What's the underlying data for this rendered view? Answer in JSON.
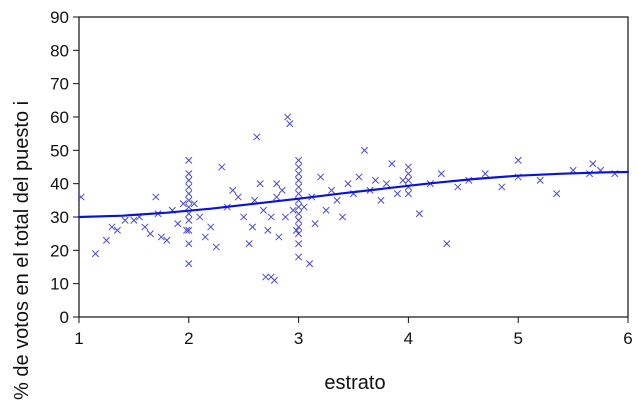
{
  "chart_data": {
    "type": "scatter",
    "title": "",
    "xlabel": "estrato",
    "ylabel": "% de votos en el total del puesto i",
    "xlim": [
      1,
      6
    ],
    "ylim": [
      0,
      90
    ],
    "x_ticks": [
      1,
      2,
      3,
      4,
      5,
      6
    ],
    "y_ticks": [
      0,
      10,
      20,
      30,
      40,
      50,
      60,
      70,
      80,
      90
    ],
    "grid": false,
    "legend": "none",
    "colors": {
      "points": "#4a4ad9",
      "fit_line": "#0a14d6",
      "axis": "#111111"
    },
    "series": [
      {
        "kind": "scatter",
        "marker": "x",
        "points": [
          [
            1.02,
            36
          ],
          [
            1.15,
            19
          ],
          [
            1.25,
            23
          ],
          [
            1.3,
            27
          ],
          [
            1.35,
            26
          ],
          [
            1.42,
            29
          ],
          [
            1.5,
            29
          ],
          [
            1.55,
            30
          ],
          [
            1.6,
            27
          ],
          [
            1.65,
            25
          ],
          [
            1.7,
            36
          ],
          [
            1.72,
            31
          ],
          [
            1.75,
            24
          ],
          [
            1.8,
            23
          ],
          [
            1.85,
            32
          ],
          [
            1.9,
            28
          ],
          [
            1.95,
            34
          ],
          [
            1.98,
            26
          ],
          [
            2.0,
            22
          ],
          [
            2.0,
            16
          ],
          [
            2.0,
            26
          ],
          [
            2.0,
            29
          ],
          [
            2.0,
            31
          ],
          [
            2.0,
            33
          ],
          [
            2.0,
            35
          ],
          [
            2.0,
            37
          ],
          [
            2.0,
            39
          ],
          [
            2.0,
            41
          ],
          [
            2.0,
            43
          ],
          [
            2.0,
            47
          ],
          [
            2.05,
            34
          ],
          [
            2.1,
            30
          ],
          [
            2.15,
            24
          ],
          [
            2.2,
            27
          ],
          [
            2.25,
            21
          ],
          [
            2.3,
            45
          ],
          [
            2.35,
            33
          ],
          [
            2.4,
            38
          ],
          [
            2.45,
            36
          ],
          [
            2.5,
            30
          ],
          [
            2.55,
            22
          ],
          [
            2.58,
            27
          ],
          [
            2.6,
            35
          ],
          [
            2.62,
            54
          ],
          [
            2.65,
            40
          ],
          [
            2.68,
            32
          ],
          [
            2.7,
            12
          ],
          [
            2.72,
            26
          ],
          [
            2.75,
            30
          ],
          [
            2.75,
            12
          ],
          [
            2.78,
            11
          ],
          [
            2.8,
            40
          ],
          [
            2.8,
            36
          ],
          [
            2.82,
            24
          ],
          [
            2.85,
            38
          ],
          [
            2.88,
            30
          ],
          [
            2.9,
            60
          ],
          [
            2.92,
            58
          ],
          [
            2.95,
            32
          ],
          [
            2.98,
            26
          ],
          [
            3.0,
            18
          ],
          [
            3.0,
            22
          ],
          [
            3.0,
            25
          ],
          [
            3.0,
            27
          ],
          [
            3.0,
            29
          ],
          [
            3.0,
            31
          ],
          [
            3.0,
            33
          ],
          [
            3.0,
            35
          ],
          [
            3.0,
            37
          ],
          [
            3.0,
            39
          ],
          [
            3.0,
            41
          ],
          [
            3.0,
            43
          ],
          [
            3.0,
            45
          ],
          [
            3.0,
            47
          ],
          [
            3.05,
            33
          ],
          [
            3.1,
            16
          ],
          [
            3.12,
            36
          ],
          [
            3.15,
            28
          ],
          [
            3.2,
            42
          ],
          [
            3.25,
            32
          ],
          [
            3.3,
            38
          ],
          [
            3.35,
            35
          ],
          [
            3.4,
            30
          ],
          [
            3.45,
            40
          ],
          [
            3.5,
            37
          ],
          [
            3.55,
            42
          ],
          [
            3.6,
            50
          ],
          [
            3.65,
            38
          ],
          [
            3.7,
            41
          ],
          [
            3.75,
            35
          ],
          [
            3.8,
            40
          ],
          [
            3.85,
            46
          ],
          [
            3.9,
            37
          ],
          [
            3.95,
            41
          ],
          [
            4.0,
            37
          ],
          [
            4.0,
            39
          ],
          [
            4.0,
            41
          ],
          [
            4.0,
            43
          ],
          [
            4.0,
            45
          ],
          [
            4.1,
            31
          ],
          [
            4.2,
            40
          ],
          [
            4.3,
            43
          ],
          [
            4.35,
            22
          ],
          [
            4.45,
            39
          ],
          [
            4.55,
            41
          ],
          [
            4.7,
            43
          ],
          [
            4.85,
            39
          ],
          [
            5.0,
            42
          ],
          [
            5.0,
            47
          ],
          [
            5.2,
            41
          ],
          [
            5.35,
            37
          ],
          [
            5.5,
            44
          ],
          [
            5.65,
            43
          ],
          [
            5.68,
            46
          ],
          [
            5.75,
            44
          ],
          [
            5.88,
            43
          ]
        ]
      },
      {
        "kind": "line",
        "points": [
          [
            1.0,
            30.0
          ],
          [
            1.4,
            30.4
          ],
          [
            1.8,
            31.3
          ],
          [
            2.2,
            32.5
          ],
          [
            2.6,
            34.0
          ],
          [
            3.0,
            35.5
          ],
          [
            3.4,
            37.1
          ],
          [
            3.8,
            38.6
          ],
          [
            4.2,
            40.1
          ],
          [
            4.6,
            41.4
          ],
          [
            5.0,
            42.4
          ],
          [
            5.4,
            43.0
          ],
          [
            5.8,
            43.4
          ],
          [
            6.0,
            43.5
          ]
        ]
      }
    ]
  }
}
